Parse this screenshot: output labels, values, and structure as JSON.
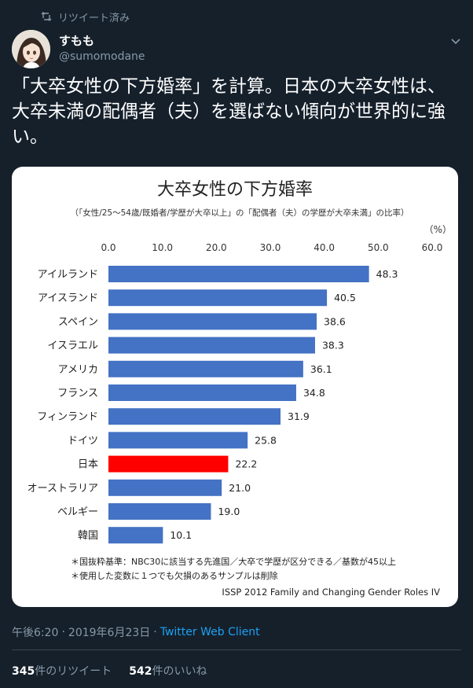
{
  "retweet_header": {
    "label": "リツイート済み",
    "icon": "retweet-icon"
  },
  "author": {
    "display_name": "すもも",
    "handle": "@sumomodane"
  },
  "tweet": {
    "lines": [
      "「大卒女性の下方婚率」を計算。日本の大卒女性は、",
      "大卒未満の配偶者（夫）を選ばない傾向が世界的に強",
      "い。"
    ]
  },
  "chart_data": {
    "type": "bar",
    "orientation": "horizontal",
    "title": "大卒女性の下方婚率",
    "subtitle": "（「女性/25～54歳/既婚者/学歴が大卒以上」の「配偶者（夫）の学歴が大卒未満」の比率）",
    "unit": "（%）",
    "xlim": [
      0,
      60
    ],
    "ticks": [
      "0.0",
      "10.0",
      "20.0",
      "30.0",
      "40.0",
      "50.0",
      "60.0"
    ],
    "categories": [
      "アイルランド",
      "アイスランド",
      "スペイン",
      "イスラエル",
      "アメリカ",
      "フランス",
      "フィンランド",
      "ドイツ",
      "日本",
      "オーストラリア",
      "ベルギー",
      "韓国"
    ],
    "values": [
      48.3,
      40.5,
      38.6,
      38.3,
      36.1,
      34.8,
      31.9,
      25.8,
      22.2,
      21.0,
      19.0,
      10.1
    ],
    "value_labels": [
      "48.3",
      "40.5",
      "38.6",
      "38.3",
      "36.1",
      "34.8",
      "31.9",
      "25.8",
      "22.2",
      "21.0",
      "19.0",
      "10.1"
    ],
    "bar_color": "#4472c4",
    "highlight_color": "#ff0000",
    "highlight_category": "日本",
    "notes": [
      "＊国抜粋基準：NBC30に該当する先進国／大卒で学歴が区分できる／基数が45以上",
      "＊使用した変数に１つでも欠損のあるサンプルは削除"
    ],
    "source": "ISSP 2012 Family and Changing Gender Roles IV"
  },
  "meta": {
    "time": "午後6:20",
    "separator": "·",
    "date": "2019年6月23日",
    "client": "Twitter Web Client"
  },
  "stats": {
    "retweets_count": "345",
    "retweets_label": "件のリツイート",
    "likes_count": "542",
    "likes_label": "件のいいね"
  },
  "colors": {
    "background": "#15202b",
    "secondary_text": "#8899a6",
    "link": "#1da1f2",
    "divider": "#38444d"
  }
}
